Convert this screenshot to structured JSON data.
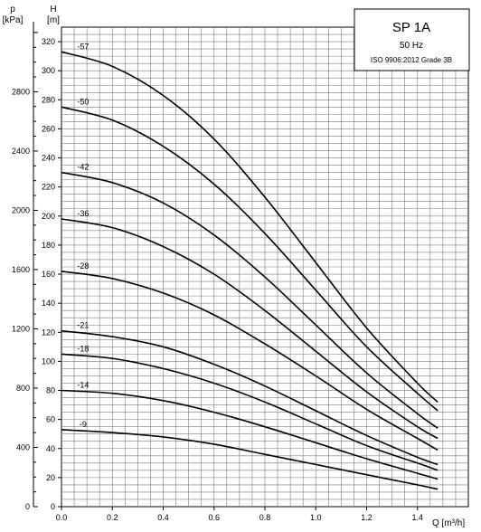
{
  "chart_data": {
    "type": "line",
    "title": "SP 1A",
    "frequency": "50 Hz",
    "standard": "ISO 9906:2012 Grade 3B",
    "xlabel": "Q [m³/h]",
    "ylabel": "H",
    "ylabel_unit": "[m]",
    "y2label": "p",
    "y2label_unit": "[kPa]",
    "xlim": [
      0,
      1.6
    ],
    "ylim": [
      0,
      330
    ],
    "y2lim": [
      0,
      3236
    ],
    "grid": true,
    "x_ticks": [
      "0.0",
      "0.2",
      "0.4",
      "0.6",
      "0.8",
      "1.0",
      "1.2",
      "1.4"
    ],
    "y_ticks": [
      "0",
      "20",
      "40",
      "60",
      "80",
      "100",
      "120",
      "140",
      "160",
      "180",
      "200",
      "220",
      "240",
      "260",
      "280",
      "300",
      "320"
    ],
    "y2_ticks": [
      "0",
      "400",
      "800",
      "1200",
      "1600",
      "2000",
      "2400",
      "2800"
    ],
    "series": [
      {
        "name": "-57",
        "x": [
          0,
          0.2,
          0.4,
          0.6,
          0.8,
          1.0,
          1.2,
          1.4,
          1.48
        ],
        "values": [
          313,
          303,
          283,
          253,
          213,
          168,
          123,
          85,
          72
        ]
      },
      {
        "name": "-50",
        "x": [
          0,
          0.2,
          0.4,
          0.6,
          0.8,
          1.0,
          1.2,
          1.4,
          1.48
        ],
        "values": [
          275,
          266,
          248,
          222,
          188,
          149,
          110,
          78,
          66
        ]
      },
      {
        "name": "-42",
        "x": [
          0,
          0.2,
          0.4,
          0.6,
          0.8,
          1.0,
          1.2,
          1.4,
          1.48
        ],
        "values": [
          230,
          223,
          209,
          187,
          158,
          125,
          92,
          64,
          54
        ]
      },
      {
        "name": "-36",
        "x": [
          0,
          0.2,
          0.4,
          0.6,
          0.8,
          1.0,
          1.2,
          1.4,
          1.48
        ],
        "values": [
          198,
          192,
          179,
          160,
          135,
          107,
          79,
          55,
          47
        ]
      },
      {
        "name": "-28",
        "x": [
          0,
          0.2,
          0.4,
          0.6,
          0.8,
          1.0,
          1.2,
          1.4,
          1.48
        ],
        "values": [
          162,
          157,
          147,
          132,
          112,
          90,
          67,
          47,
          39
        ]
      },
      {
        "name": "-21",
        "x": [
          0,
          0.2,
          0.4,
          0.6,
          0.8,
          1.0,
          1.2,
          1.4,
          1.48
        ],
        "values": [
          121,
          117,
          110,
          98,
          83,
          66,
          49,
          34,
          29
        ]
      },
      {
        "name": "-18",
        "x": [
          0,
          0.2,
          0.4,
          0.6,
          0.8,
          1.0,
          1.2,
          1.4,
          1.48
        ],
        "values": [
          105,
          102,
          95,
          85,
          72,
          57,
          42,
          30,
          25
        ]
      },
      {
        "name": "-14",
        "x": [
          0,
          0.2,
          0.4,
          0.6,
          0.8,
          1.0,
          1.2,
          1.4,
          1.48
        ],
        "values": [
          80,
          78,
          73,
          65,
          55,
          44,
          33,
          23,
          19
        ]
      },
      {
        "name": "-9",
        "x": [
          0,
          0.2,
          0.4,
          0.6,
          0.8,
          1.0,
          1.2,
          1.4,
          1.48
        ],
        "values": [
          53,
          51,
          48,
          43,
          36,
          29,
          22,
          15,
          12
        ]
      }
    ]
  }
}
